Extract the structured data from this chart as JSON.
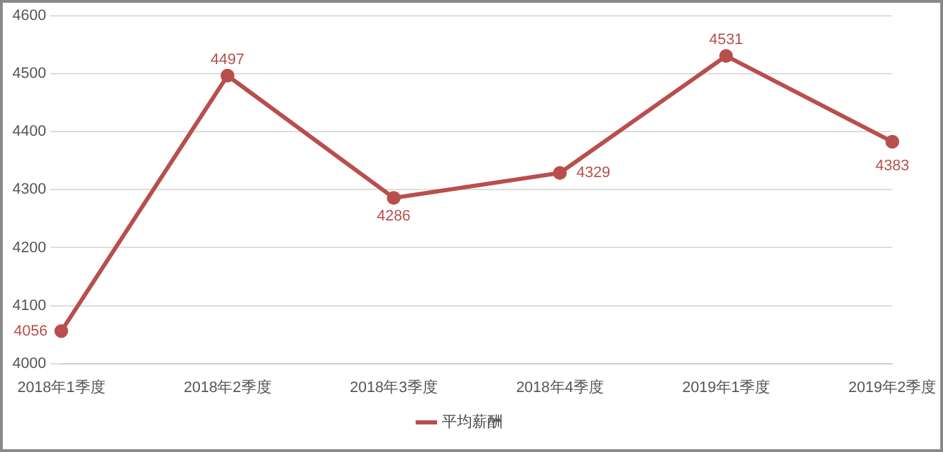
{
  "chart_data": {
    "type": "line",
    "categories": [
      "2018年1季度",
      "2018年2季度",
      "2018年3季度",
      "2018年4季度",
      "2019年1季度",
      "2019年2季度"
    ],
    "series": [
      {
        "name": "平均薪酬",
        "color": "#b84f4c",
        "values": [
          4056,
          4497,
          4286,
          4329,
          4531,
          4383
        ]
      }
    ],
    "ylim": [
      4000,
      4600
    ],
    "yticks": [
      4000,
      4100,
      4200,
      4300,
      4400,
      4500,
      4600
    ],
    "grid": "y",
    "legend": "bottom",
    "marker": "circle",
    "line_style": "solid",
    "data_labels": true
  }
}
